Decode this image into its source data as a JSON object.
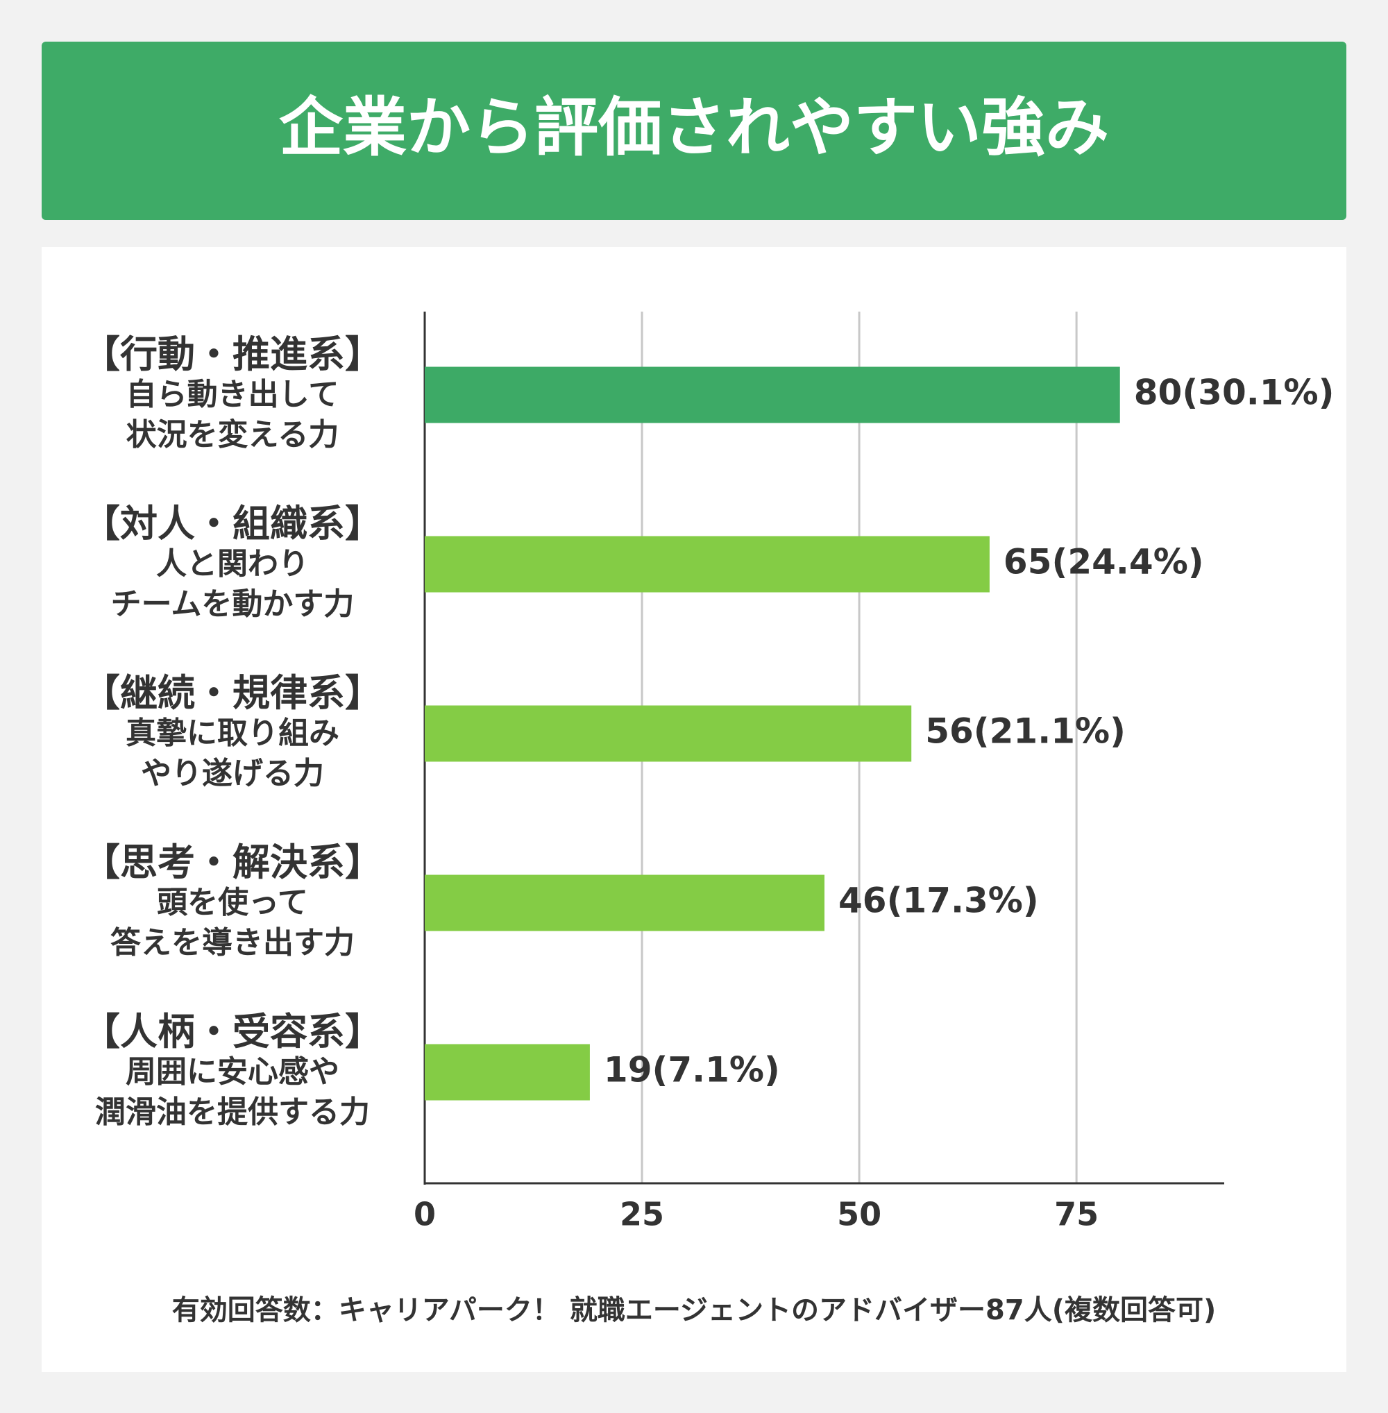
{
  "chart_data": {
    "type": "bar",
    "orientation": "horizontal",
    "title": "企業から評価されやすい強み",
    "categories": [
      "【行動・推進系】\n自ら動き出して\n状況を変える力",
      "【対人・組織系】\n人と関わり\nチームを動かす力",
      "【継続・規律系】\n真摯に取り組み\nやり遂げる力",
      "【思考・解決系】\n頭を使って\n答えを導き出す力",
      "【人柄・受容系】\n周囲に安心感や\n潤滑油を提供する力"
    ],
    "values": [
      80,
      65,
      56,
      46,
      19
    ],
    "value_labels": [
      "80(30.1%)",
      "65(24.4%)",
      "56(21.1%)",
      "46(17.3%)",
      "19(7.1%)"
    ],
    "colors": [
      "#3daa66",
      "#84cc45",
      "#84cc45",
      "#84cc45",
      "#84cc45"
    ],
    "xlim": [
      0,
      92
    ],
    "xticks": [
      0,
      25,
      50,
      75
    ],
    "grid": true,
    "note": "有効回答数：キャリアパーク！ 就職エージェントのアドバイザー87人(複数回答可)"
  }
}
